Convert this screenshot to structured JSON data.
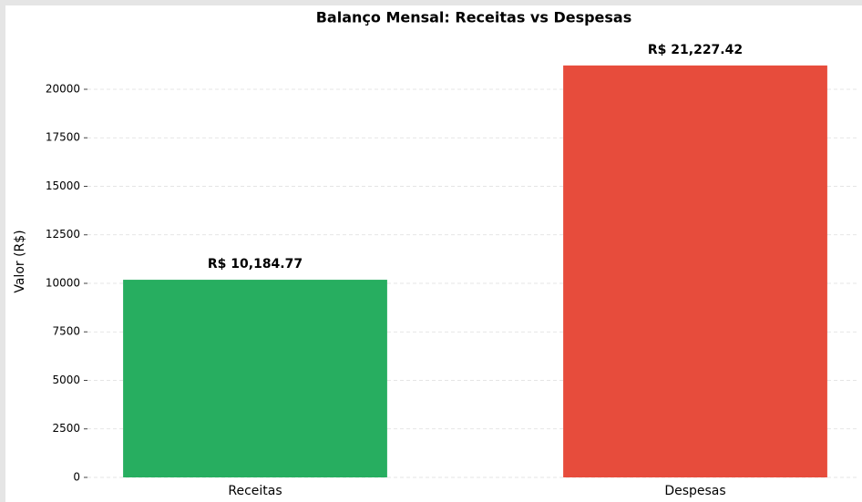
{
  "chart_data": {
    "type": "bar",
    "title": "Balanço Mensal: Receitas vs Despesas",
    "ylabel": "Valor (R$)",
    "categories": [
      "Receitas",
      "Despesas"
    ],
    "values": [
      10184.77,
      21227.42
    ],
    "value_labels": [
      "R$ 10,184.77",
      "R$ 21,227.42"
    ],
    "colors": [
      "#27ae60",
      "#e74c3c"
    ],
    "ylim": [
      0,
      22300
    ],
    "yticks": [
      0,
      2500,
      5000,
      7500,
      10000,
      12500,
      15000,
      17500,
      20000
    ],
    "grid": true
  }
}
